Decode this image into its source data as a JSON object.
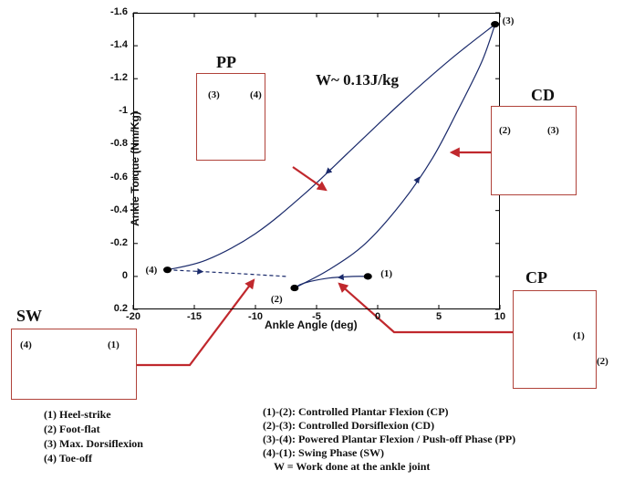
{
  "chart_data": {
    "type": "line",
    "xlabel": "Ankle Angle (deg)",
    "ylabel": "Ankle Torque (Nm/Kg)",
    "xlim": [
      -20,
      10
    ],
    "ylim": [
      0.2,
      -1.6
    ],
    "y_inverted": true,
    "xticks": [
      "-20",
      "-15",
      "-10",
      "-5",
      "0",
      "5",
      "10"
    ],
    "yticks": [
      "-1.6",
      "-1.4",
      "-1.2",
      "-1",
      "-0.8",
      "-0.6",
      "-0.4",
      "-0.2",
      "0",
      "0.2"
    ],
    "series": [
      {
        "segment": "1-2",
        "x": [
          -0.8,
          -2.0,
          -4.0,
          -6.0,
          -6.8
        ],
        "y": [
          0.0,
          0.0,
          0.01,
          0.04,
          0.07
        ]
      },
      {
        "segment": "2-3",
        "x": [
          -6.8,
          -4.0,
          -1.0,
          2.0,
          4.5,
          6.5,
          8.5,
          9.6
        ],
        "y": [
          0.07,
          -0.04,
          -0.2,
          -0.45,
          -0.72,
          -1.0,
          -1.3,
          -1.53
        ]
      },
      {
        "segment": "3-4",
        "x": [
          9.6,
          6.0,
          2.0,
          -2.0,
          -6.0,
          -10.0,
          -14.0,
          -17.2
        ],
        "y": [
          -1.53,
          -1.32,
          -1.06,
          -0.78,
          -0.5,
          -0.26,
          -0.1,
          -0.04
        ]
      },
      {
        "segment": "4-1",
        "x": [
          -17.2,
          -12.0,
          -7.5
        ],
        "y": [
          -0.04,
          -0.02,
          0.0
        ]
      }
    ],
    "points": [
      {
        "label": "(1)",
        "x": -0.8,
        "y": 0.0
      },
      {
        "label": "(2)",
        "x": -6.8,
        "y": 0.07
      },
      {
        "label": "(3)",
        "x": 9.6,
        "y": -1.53
      },
      {
        "label": "(4)",
        "x": -17.2,
        "y": -0.04
      }
    ],
    "annotation": "W~ 0.13J/kg"
  },
  "panels": {
    "pp": {
      "title": "PP",
      "labels": [
        "(3)",
        "(4)"
      ]
    },
    "cd": {
      "title": "CD",
      "labels": [
        "(2)",
        "(3)"
      ]
    },
    "cp": {
      "title": "CP",
      "labels": [
        "(1)",
        "(2)"
      ]
    },
    "sw": {
      "title": "SW",
      "labels": [
        "(4)",
        "(1)"
      ]
    }
  },
  "legend_left": [
    "(1) Heel-strike",
    "(2) Foot-flat",
    "(3) Max. Dorsiflexion",
    "(4) Toe-off"
  ],
  "legend_right": [
    "(1)-(2): Controlled Plantar Flexion (CP)",
    "(2)-(3): Controlled Dorsiflexion (CD)",
    "(3)-(4): Powered Plantar Flexion / Push-off Phase (PP)",
    "(4)-(1): Swing Phase (SW)",
    "W = Work done at the ankle joint"
  ],
  "colors": {
    "curve": "#1a2a6b",
    "arrow": "#c0282d",
    "box": "#b0423a"
  }
}
